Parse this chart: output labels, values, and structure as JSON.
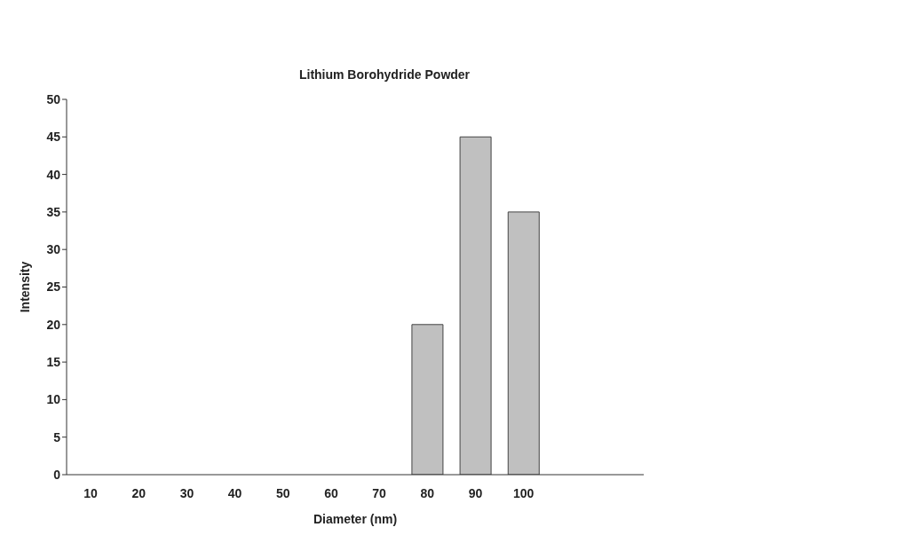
{
  "chart_data": {
    "type": "bar",
    "title": "Lithium Borohydride Powder",
    "xlabel": "Diameter (nm)",
    "ylabel": "Intensity",
    "categories": [
      "10",
      "20",
      "30",
      "40",
      "50",
      "60",
      "70",
      "80",
      "90",
      "100",
      null,
      null
    ],
    "values": [
      0,
      0,
      0,
      0,
      0,
      0,
      0,
      20,
      45,
      35,
      null,
      null
    ],
    "color": "#c0c0c0",
    "ylim": [
      0,
      50
    ],
    "yticks": [
      0,
      5,
      10,
      15,
      20,
      25,
      30,
      35,
      40,
      45,
      50
    ],
    "grid": false,
    "legend": false
  }
}
